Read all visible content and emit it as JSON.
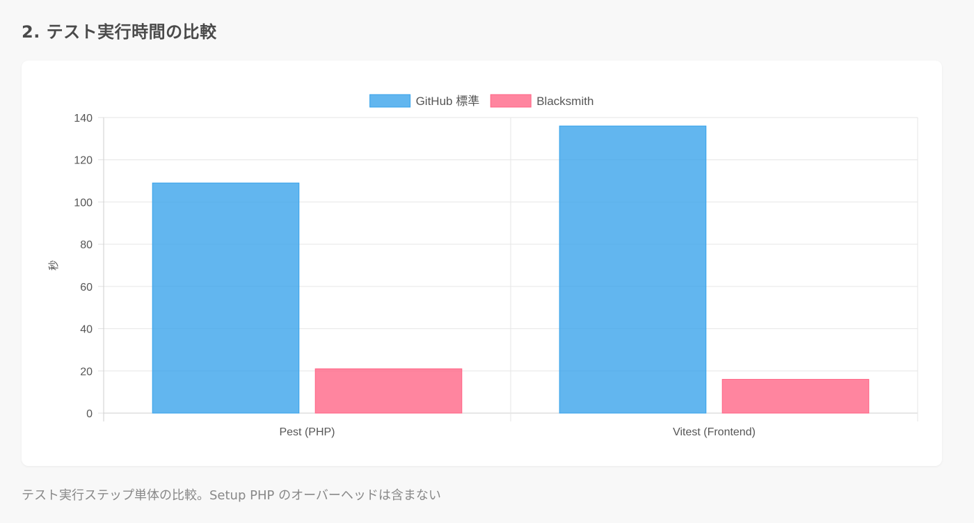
{
  "header": {
    "title": "2. テスト実行時間の比較"
  },
  "caption": "テスト実行ステップ単体の比較。Setup PHP のオーバーヘッドは含まない",
  "chart_data": {
    "type": "bar",
    "categories": [
      "Pest (PHP)",
      "Vitest (Frontend)"
    ],
    "series": [
      {
        "name": "GitHub 標準",
        "values": [
          109,
          136
        ],
        "color": "#36a2eb"
      },
      {
        "name": "Blacksmith",
        "values": [
          21,
          16
        ],
        "color": "#ff6384"
      }
    ],
    "ylabel": "秒",
    "ylim": [
      0,
      140
    ],
    "yticks": [
      0,
      20,
      40,
      60,
      80,
      100,
      120,
      140
    ],
    "grid": true,
    "legend": "top-center"
  }
}
